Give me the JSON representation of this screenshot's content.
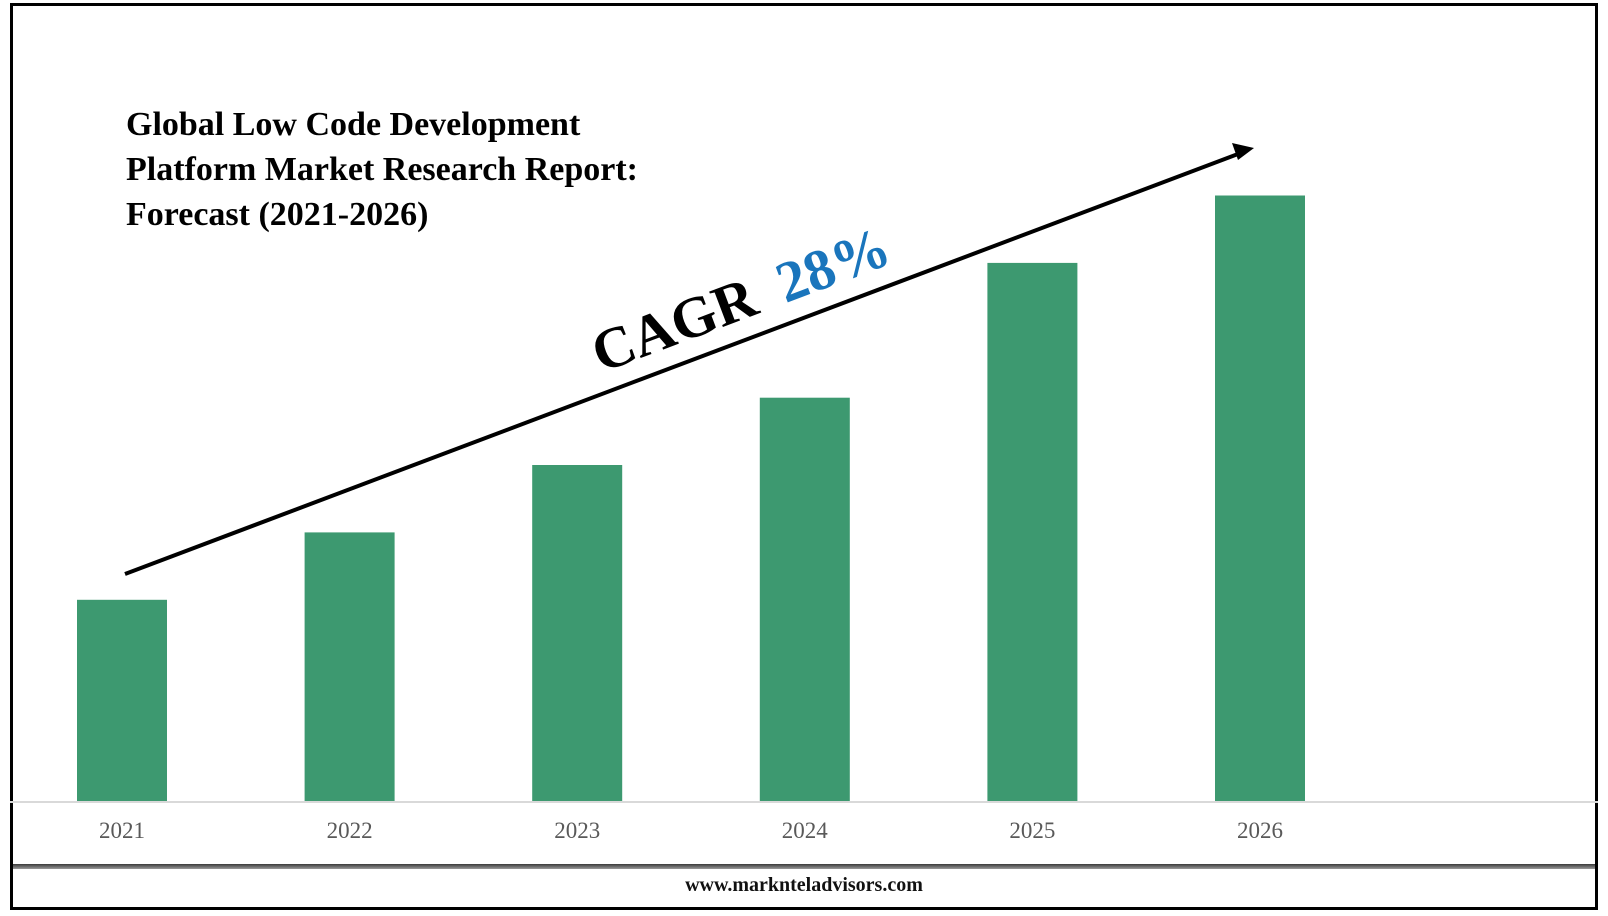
{
  "chart_data": {
    "type": "bar",
    "title_lines": [
      "Global Low Code Development",
      "Platform Market Research Report:",
      "Forecast (2021-2026)"
    ],
    "categories": [
      "2021",
      "2022",
      "2023",
      "2024",
      "2025",
      "2026"
    ],
    "values": [
      3.0,
      4.0,
      5.0,
      6.0,
      8.0,
      9.0
    ],
    "ylim": [
      0,
      9.2
    ],
    "color": "#3d9970",
    "grid": false,
    "annotation": {
      "label": "CAGR",
      "value": "28%",
      "label_color": "#000000",
      "value_color": "#1a75bc"
    }
  },
  "footer": {
    "url": "www.marknteladvisors.com"
  }
}
